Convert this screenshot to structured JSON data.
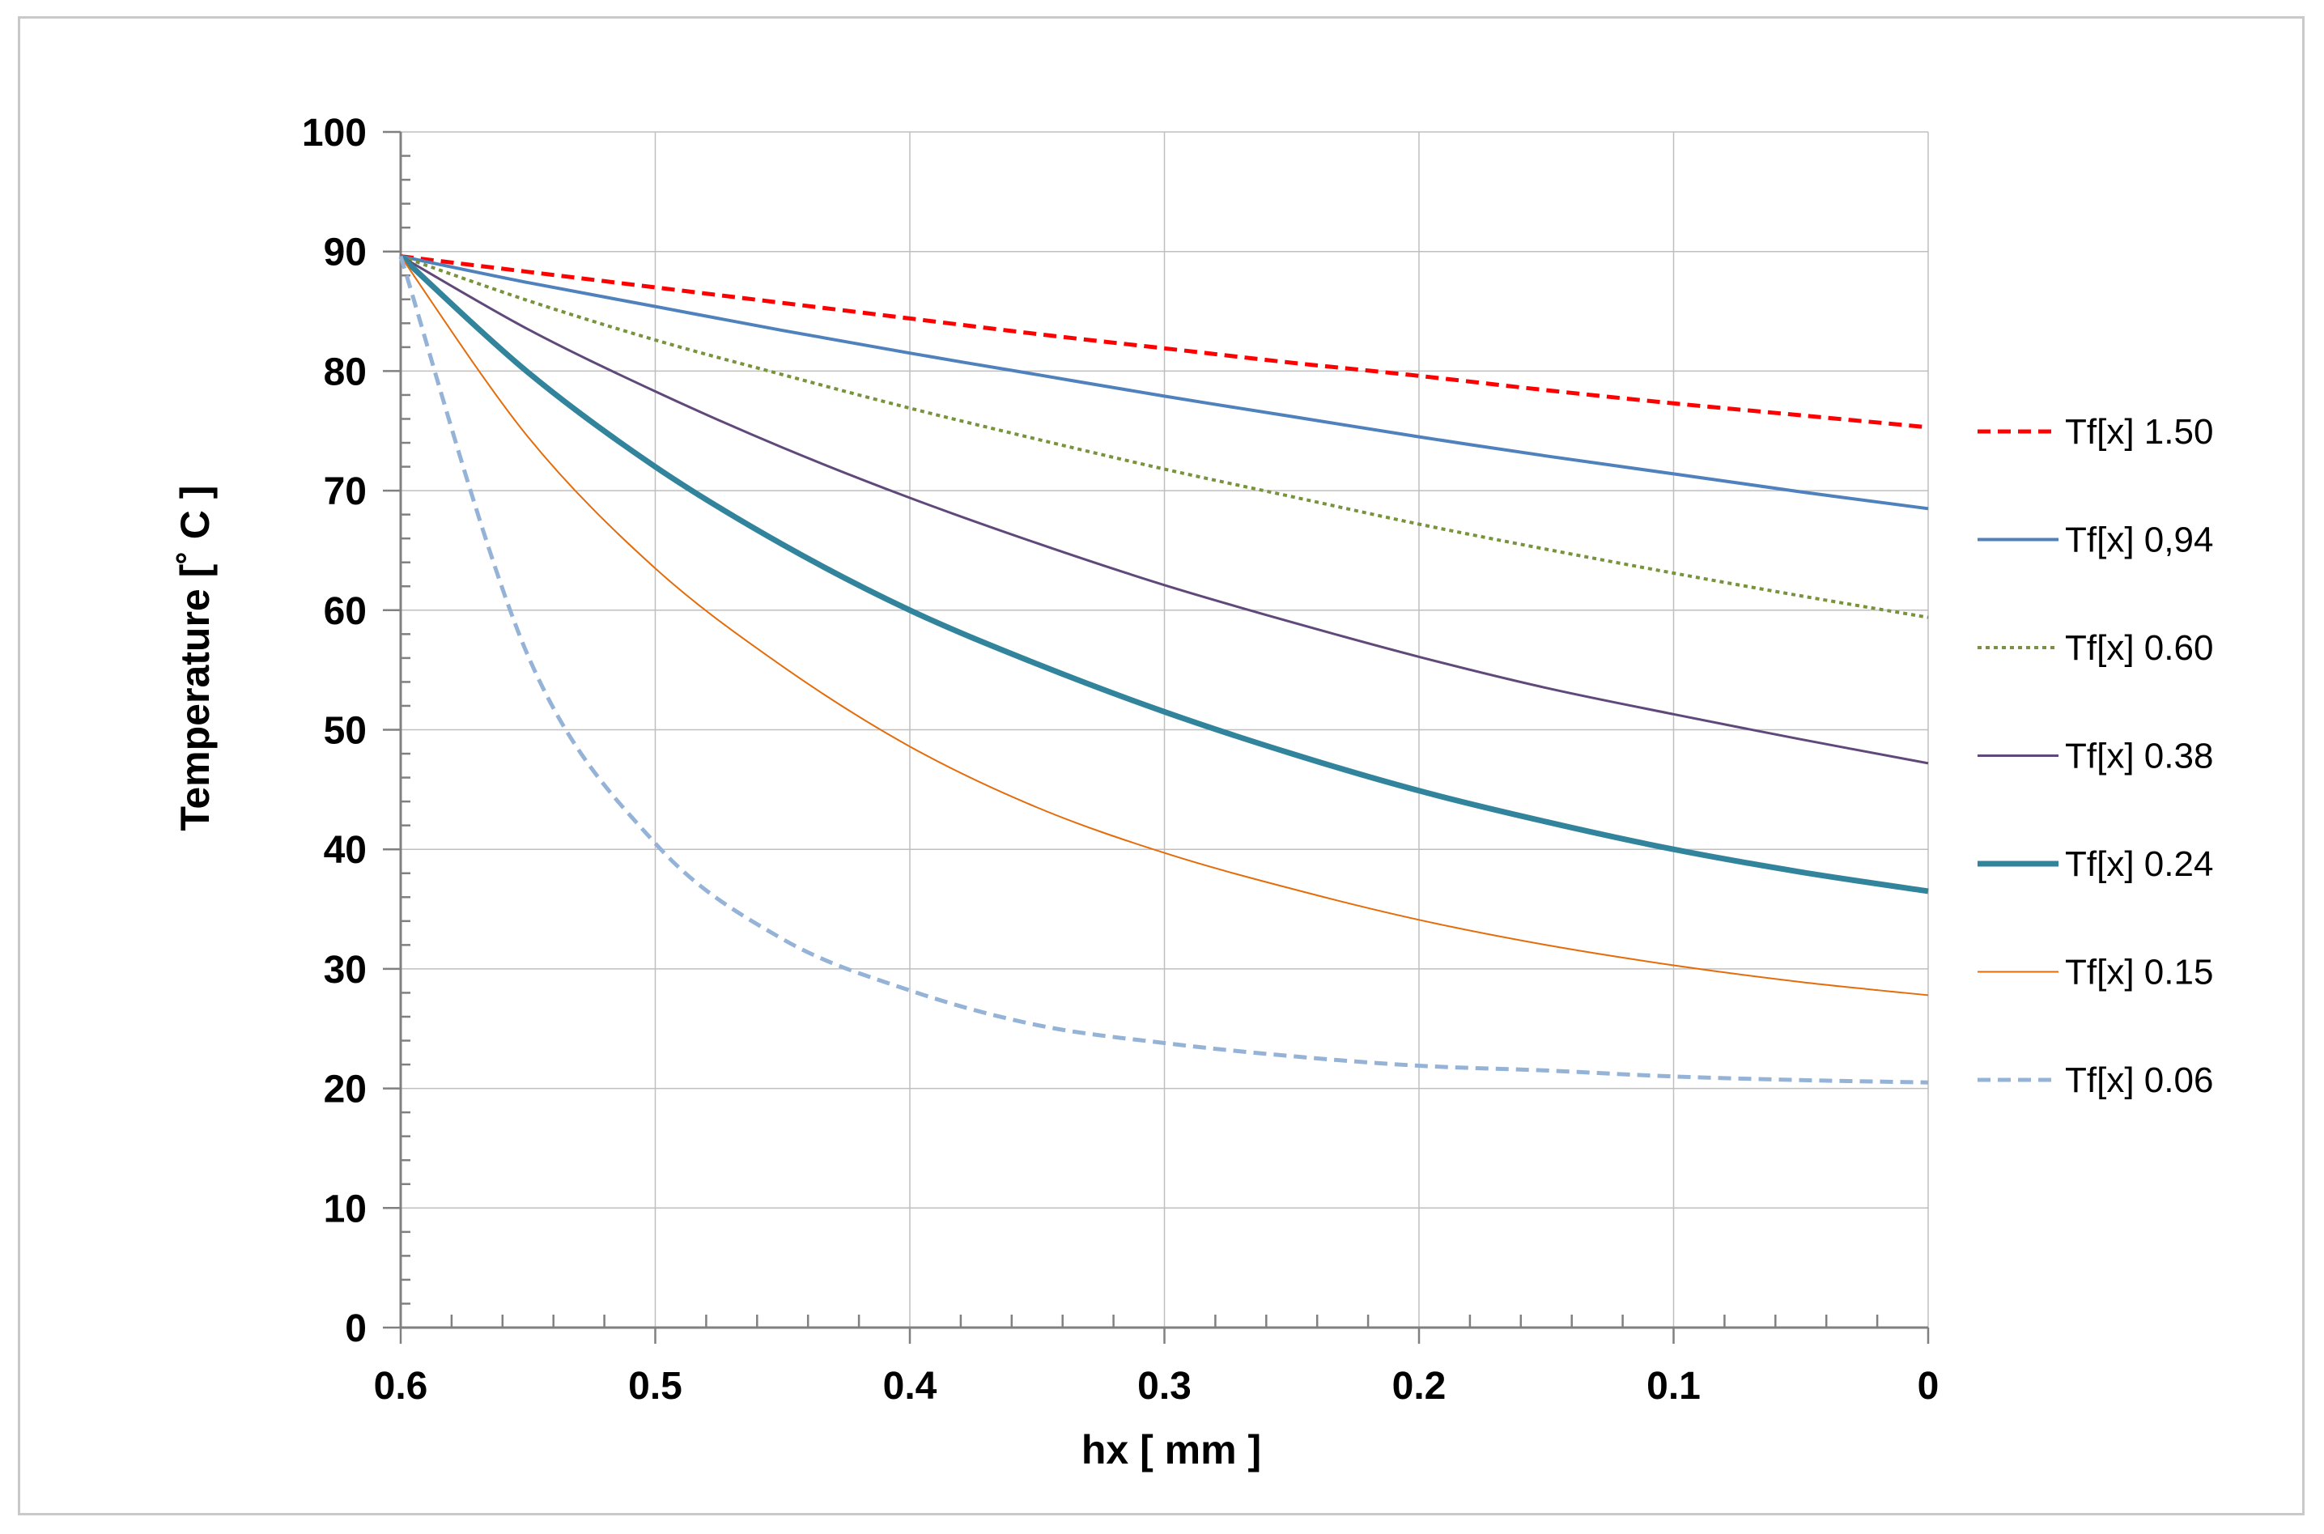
{
  "chart_data": {
    "type": "line",
    "title": "",
    "xlabel": "hx [ mm ]",
    "ylabel": "Temperature [˚ C ]",
    "xlim": [
      0.6,
      0
    ],
    "ylim": [
      0,
      100
    ],
    "x_ticks": [
      "0.6",
      "0.5",
      "0.4",
      "0.3",
      "0.2",
      "0.1",
      "0"
    ],
    "y_ticks": [
      "0",
      "10",
      "20",
      "30",
      "40",
      "50",
      "60",
      "70",
      "80",
      "90",
      "100"
    ],
    "x_tick_values": [
      0.6,
      0.5,
      0.4,
      0.3,
      0.2,
      0.1,
      0
    ],
    "y_tick_values": [
      0,
      10,
      20,
      30,
      40,
      50,
      60,
      70,
      80,
      90,
      100
    ],
    "grid": true,
    "legend_position": "right",
    "x": [
      0.6,
      0.55,
      0.5,
      0.45,
      0.4,
      0.35,
      0.3,
      0.25,
      0.2,
      0.15,
      0.1,
      0.05,
      0
    ],
    "series": [
      {
        "name": "Tf[x] 1.50",
        "color": "#ff0000",
        "style": "dashed",
        "width": 5,
        "values": [
          89.6,
          88.3,
          87.0,
          85.7,
          84.4,
          83.1,
          81.9,
          80.7,
          79.6,
          78.4,
          77.3,
          76.3,
          75.3
        ]
      },
      {
        "name": "Tf[x] 0,94",
        "color": "#4f81bd",
        "style": "solid",
        "width": 4,
        "values": [
          89.6,
          87.4,
          85.4,
          83.4,
          81.5,
          79.7,
          77.9,
          76.2,
          74.5,
          72.9,
          71.4,
          69.9,
          68.5
        ]
      },
      {
        "name": "Tf[x] 0.60",
        "color": "#77933c",
        "style": "dotted",
        "width": 4,
        "values": [
          89.6,
          85.9,
          82.6,
          79.7,
          76.9,
          74.3,
          71.8,
          69.5,
          67.2,
          65.1,
          63.1,
          61.2,
          59.4
        ]
      },
      {
        "name": "Tf[x] 0.38",
        "color": "#60497a",
        "style": "solid",
        "width": 3,
        "values": [
          89.6,
          83.5,
          78.3,
          73.6,
          69.4,
          65.6,
          62.1,
          59.0,
          56.1,
          53.5,
          51.3,
          49.2,
          47.2
        ]
      },
      {
        "name": "Tf[x] 0.24",
        "color": "#31849b",
        "style": "solid",
        "width": 7,
        "values": [
          89.6,
          79.9,
          72.0,
          65.5,
          60.0,
          55.5,
          51.5,
          48.0,
          44.9,
          42.3,
          40.0,
          38.1,
          36.5
        ]
      },
      {
        "name": "Tf[x] 0.15",
        "color": "#e46c0a",
        "style": "solid",
        "width": 2,
        "values": [
          89.6,
          74.5,
          63.5,
          55.3,
          48.6,
          43.5,
          39.7,
          36.7,
          34.1,
          32.0,
          30.3,
          28.9,
          27.8
        ]
      },
      {
        "name": "Tf[x] 0.06",
        "color": "#95b3d7",
        "style": "dashed",
        "width": 5,
        "values": [
          89.6,
          56.2,
          40.5,
          32.5,
          28.2,
          25.3,
          23.8,
          22.7,
          21.9,
          21.5,
          21.0,
          20.7,
          20.5
        ]
      }
    ]
  }
}
